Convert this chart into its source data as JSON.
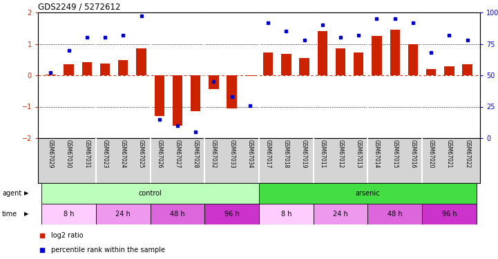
{
  "title": "GDS2249 / 5272612",
  "samples": [
    "GSM67029",
    "GSM67030",
    "GSM67031",
    "GSM67023",
    "GSM67024",
    "GSM67025",
    "GSM67026",
    "GSM67027",
    "GSM67028",
    "GSM67032",
    "GSM67033",
    "GSM67034",
    "GSM67017",
    "GSM67018",
    "GSM67019",
    "GSM67011",
    "GSM67012",
    "GSM67013",
    "GSM67014",
    "GSM67015",
    "GSM67016",
    "GSM67020",
    "GSM67021",
    "GSM67022"
  ],
  "log2_ratio": [
    0.02,
    0.35,
    0.42,
    0.38,
    0.48,
    0.85,
    -1.3,
    -1.6,
    -1.15,
    -0.45,
    -1.05,
    -0.03,
    0.72,
    0.68,
    0.55,
    1.4,
    0.85,
    0.72,
    1.25,
    1.45,
    1.0,
    0.2,
    0.28,
    0.35
  ],
  "percentile": [
    52,
    70,
    80,
    80,
    82,
    97,
    15,
    10,
    5,
    45,
    33,
    26,
    92,
    85,
    78,
    90,
    80,
    82,
    95,
    95,
    92,
    68,
    82,
    78
  ],
  "bar_color": "#cc2200",
  "dot_color": "#0000cc",
  "ylim_left": [
    -2,
    2
  ],
  "ylim_right": [
    0,
    100
  ],
  "yticks_left": [
    -2,
    -1,
    0,
    1,
    2
  ],
  "yticks_right": [
    0,
    25,
    50,
    75,
    100
  ],
  "dotted_lines": [
    -1,
    1
  ],
  "agent_groups": [
    {
      "label": "control",
      "start": 0,
      "end": 11,
      "color": "#bbffbb"
    },
    {
      "label": "arsenic",
      "start": 12,
      "end": 23,
      "color": "#44dd44"
    }
  ],
  "time_groups": [
    {
      "label": "8 h",
      "start": 0,
      "end": 2,
      "color_idx": 0
    },
    {
      "label": "24 h",
      "start": 3,
      "end": 5,
      "color_idx": 1
    },
    {
      "label": "48 h",
      "start": 6,
      "end": 8,
      "color_idx": 2
    },
    {
      "label": "96 h",
      "start": 9,
      "end": 11,
      "color_idx": 3
    },
    {
      "label": "8 h",
      "start": 12,
      "end": 14,
      "color_idx": 0
    },
    {
      "label": "24 h",
      "start": 15,
      "end": 17,
      "color_idx": 1
    },
    {
      "label": "48 h",
      "start": 18,
      "end": 20,
      "color_idx": 2
    },
    {
      "label": "96 h",
      "start": 21,
      "end": 23,
      "color_idx": 3
    }
  ],
  "time_colors": [
    "#ffccff",
    "#ee99ee",
    "#dd66dd",
    "#cc33cc"
  ],
  "xtick_bg": "#d4d4d4",
  "legend_items": [
    {
      "label": "log2 ratio",
      "color": "#cc2200"
    },
    {
      "label": "percentile rank within the sample",
      "color": "#0000cc"
    }
  ],
  "background_color": "#ffffff",
  "sep_positions": [
    2.5,
    5.5,
    8.5,
    11.5,
    14.5,
    17.5,
    20.5
  ]
}
